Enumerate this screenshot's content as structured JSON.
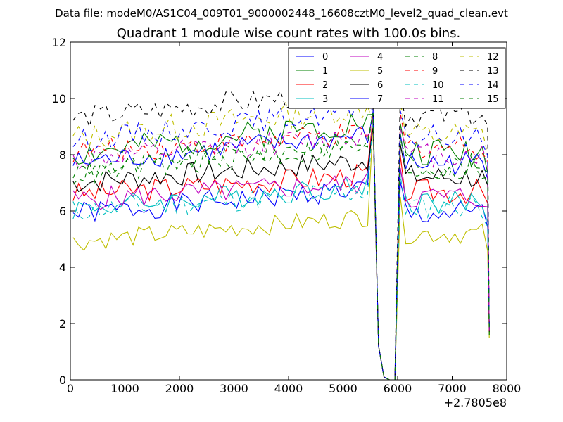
{
  "figure": {
    "suptitle": "Data file: modeM0/AS1C04_009T01_9000002448_16608cztM0_level2_quad_clean.evt",
    "title": "Quadrant 1 module wise count rates with 100.0s bins.",
    "offset_label": "+2.7805e8"
  },
  "chart_data": {
    "type": "line",
    "title": "Quadrant 1 module wise count rates with 100.0s bins.",
    "xlabel": "",
    "ylabel": "",
    "xlim": [
      0,
      8000
    ],
    "ylim": [
      0,
      12
    ],
    "x_offset": 278050000,
    "xticks": [
      0,
      1000,
      2000,
      3000,
      4000,
      5000,
      6000,
      7000,
      8000
    ],
    "xtick_labels": [
      "0",
      "1000",
      "2000",
      "3000",
      "4000",
      "5000",
      "6000",
      "7000",
      "8000"
    ],
    "yticks": [
      0,
      2,
      4,
      6,
      8,
      10,
      12
    ],
    "ytick_labels": [
      "0",
      "2",
      "4",
      "6",
      "8",
      "10",
      "12"
    ],
    "legend_location": "top-right",
    "legend_columns": 4,
    "segments": [
      {
        "x_start": 50,
        "x_step": 100,
        "count": 55
      },
      {
        "x_start": 6050,
        "x_step": 100,
        "count": 16
      }
    ],
    "gap_tail_x": [
      5550,
      5650,
      5750,
      5850
    ],
    "gap_tail_y": [
      9.3,
      1.2,
      0.1,
      0.0
    ],
    "gap_head_x": [
      5850,
      5950
    ],
    "gap_head_y": [
      0.0,
      0.0
    ],
    "end_tail_x": [
      7650,
      7680
    ],
    "series": [
      {
        "name": "0",
        "color": "#0000ff",
        "dash": "solid",
        "base": 5.9,
        "trend": 0.9,
        "amp": 0.3,
        "post": 5.9,
        "seed": 1,
        "end": 1.8
      },
      {
        "name": "1",
        "color": "#008000",
        "dash": "solid",
        "base": 8.0,
        "trend": 1.2,
        "amp": 0.35,
        "post": 8.1,
        "seed": 2,
        "end": 1.6
      },
      {
        "name": "2",
        "color": "#ff0000",
        "dash": "solid",
        "base": 6.6,
        "trend": 0.7,
        "amp": 0.3,
        "post": 6.7,
        "seed": 3,
        "end": 1.7
      },
      {
        "name": "3",
        "color": "#00bfbf",
        "dash": "solid",
        "base": 6.1,
        "trend": 0.8,
        "amp": 0.3,
        "post": 6.3,
        "seed": 4,
        "end": 1.9
      },
      {
        "name": "4",
        "color": "#bf00bf",
        "dash": "solid",
        "base": 6.4,
        "trend": 0.6,
        "amp": 0.3,
        "post": 6.5,
        "seed": 5,
        "end": 1.8
      },
      {
        "name": "5",
        "color": "#bfbf00",
        "dash": "solid",
        "base": 4.9,
        "trend": 0.9,
        "amp": 0.25,
        "post": 5.2,
        "seed": 6,
        "end": 1.5
      },
      {
        "name": "6",
        "color": "#000000",
        "dash": "solid",
        "base": 7.0,
        "trend": 0.8,
        "amp": 0.3,
        "post": 7.2,
        "seed": 7,
        "end": 1.7
      },
      {
        "name": "7",
        "color": "#0000ff",
        "dash": "solid",
        "base": 7.7,
        "trend": 1.0,
        "amp": 0.3,
        "post": 7.7,
        "seed": 8,
        "end": 1.8
      },
      {
        "name": "8",
        "color": "#008000",
        "dash": "dashed",
        "base": 7.4,
        "trend": 1.1,
        "amp": 0.3,
        "post": 7.6,
        "seed": 9,
        "end": 1.7
      },
      {
        "name": "9",
        "color": "#ff0000",
        "dash": "dashed",
        "base": 8.1,
        "trend": 0.6,
        "amp": 0.3,
        "post": 8.3,
        "seed": 10,
        "end": 1.6
      },
      {
        "name": "10",
        "color": "#00bfbf",
        "dash": "dashed",
        "base": 6.0,
        "trend": 0.7,
        "amp": 0.3,
        "post": 6.2,
        "seed": 11,
        "end": 1.9
      },
      {
        "name": "11",
        "color": "#bf00bf",
        "dash": "dashed",
        "base": 7.8,
        "trend": 0.9,
        "amp": 0.3,
        "post": 8.0,
        "seed": 12,
        "end": 1.7
      },
      {
        "name": "12",
        "color": "#bfbf00",
        "dash": "dashed",
        "base": 8.6,
        "trend": 1.1,
        "amp": 0.35,
        "post": 8.7,
        "seed": 13,
        "end": 1.5
      },
      {
        "name": "13",
        "color": "#000000",
        "dash": "dashed",
        "base": 9.3,
        "trend": 1.0,
        "amp": 0.3,
        "post": 9.4,
        "seed": 14,
        "end": 1.7
      },
      {
        "name": "14",
        "color": "#0000ff",
        "dash": "dashed",
        "base": 8.5,
        "trend": 1.1,
        "amp": 0.3,
        "post": 8.6,
        "seed": 15,
        "end": 1.8
      },
      {
        "name": "15",
        "color": "#008000",
        "dash": "dashed",
        "base": 7.3,
        "trend": 1.0,
        "amp": 0.3,
        "post": 7.5,
        "seed": 16,
        "end": 1.6
      }
    ]
  }
}
